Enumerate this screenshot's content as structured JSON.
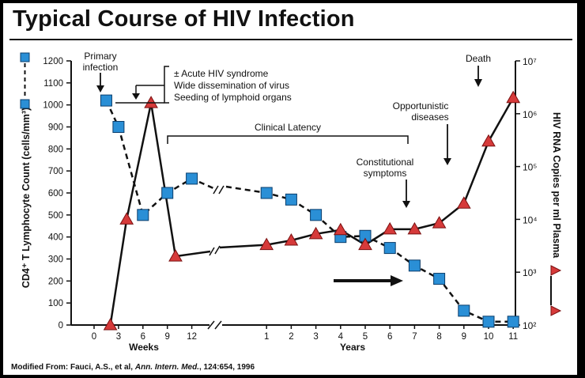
{
  "header": {
    "title": "Typical Course of HIV Infection"
  },
  "footer": {
    "prefix": "Modified From:  Fauci, A.S., et al, ",
    "journal": "Ann. Intern. Med.",
    "suffix": ", 124:654, 1996"
  },
  "chart_data": {
    "type": "line",
    "title": "Typical Course of HIV Infection",
    "x_segments": [
      {
        "label": "Weeks",
        "ticks": [
          "0",
          "3",
          "6",
          "9",
          "12"
        ]
      },
      {
        "label": "Years",
        "ticks": [
          "1",
          "2",
          "3",
          "4",
          "5",
          "6",
          "7",
          "8",
          "9",
          "10",
          "11"
        ]
      }
    ],
    "y_left": {
      "label": "CD4⁺ T Lymphocyte Count (cells/mm³)",
      "ylim": [
        0,
        1200
      ],
      "ticks": [
        "0",
        "100",
        "200",
        "300",
        "400",
        "500",
        "600",
        "700",
        "800",
        "900",
        "1000",
        "1100",
        "1200"
      ]
    },
    "y_right": {
      "label": "HIV RNA Copies per ml Plasma",
      "scale": "log",
      "ylim": [
        100,
        10000000
      ],
      "ticks": [
        "10²",
        "10³",
        "10⁴",
        "10⁵",
        "10⁶",
        "10⁷"
      ]
    },
    "series": [
      {
        "marker": "square",
        "line": "dashed",
        "axis": "left",
        "color": "#2a8fd6",
        "points": [
          {
            "segment": "Weeks",
            "x": 1.5,
            "y": 1020
          },
          {
            "segment": "Weeks",
            "x": 3,
            "y": 900
          },
          {
            "segment": "Weeks",
            "x": 6,
            "y": 500
          },
          {
            "segment": "Weeks",
            "x": 9,
            "y": 600
          },
          {
            "segment": "Weeks",
            "x": 12,
            "y": 665
          },
          {
            "segment": "Years",
            "x": 1,
            "y": 600
          },
          {
            "segment": "Years",
            "x": 2,
            "y": 570
          },
          {
            "segment": "Years",
            "x": 3,
            "y": 500
          },
          {
            "segment": "Years",
            "x": 4,
            "y": 400
          },
          {
            "segment": "Years",
            "x": 5,
            "y": 405
          },
          {
            "segment": "Years",
            "x": 6,
            "y": 350
          },
          {
            "segment": "Years",
            "x": 7,
            "y": 270
          },
          {
            "segment": "Years",
            "x": 8,
            "y": 210
          },
          {
            "segment": "Years",
            "x": 9,
            "y": 65
          },
          {
            "segment": "Years",
            "x": 10,
            "y": 15
          },
          {
            "segment": "Years",
            "x": 11,
            "y": 15
          }
        ]
      },
      {
        "marker": "triangle",
        "line": "solid",
        "axis": "right",
        "color": "#d63a3a",
        "points": [
          {
            "segment": "Weeks",
            "x": 2,
            "y": 100
          },
          {
            "segment": "Weeks",
            "x": 4,
            "y": 10000
          },
          {
            "segment": "Weeks",
            "x": 7,
            "y": 1600000
          },
          {
            "segment": "Weeks",
            "x": 10,
            "y": 2000
          },
          {
            "segment": "Years",
            "x": 1,
            "y": 3300
          },
          {
            "segment": "Years",
            "x": 2,
            "y": 4000
          },
          {
            "segment": "Years",
            "x": 3,
            "y": 5300
          },
          {
            "segment": "Years",
            "x": 4,
            "y": 6300
          },
          {
            "segment": "Years",
            "x": 5,
            "y": 3300
          },
          {
            "segment": "Years",
            "x": 6,
            "y": 6500
          },
          {
            "segment": "Years",
            "x": 7,
            "y": 6500
          },
          {
            "segment": "Years",
            "x": 8,
            "y": 8500
          },
          {
            "segment": "Years",
            "x": 9,
            "y": 20000
          },
          {
            "segment": "Years",
            "x": 10,
            "y": 300000
          },
          {
            "segment": "Years",
            "x": 11,
            "y": 2000000
          }
        ]
      }
    ],
    "annotations": {
      "primary": [
        "Primary",
        "infection"
      ],
      "acute": [
        "± Acute HIV syndrome",
        "Wide dissemination of virus",
        "Seeding of lymphoid organs"
      ],
      "latency": "Clinical Latency",
      "constitutional": [
        "Constitutional",
        "symptoms"
      ],
      "opportunistic": [
        "Opportunistic",
        "diseases"
      ],
      "death": "Death"
    }
  }
}
